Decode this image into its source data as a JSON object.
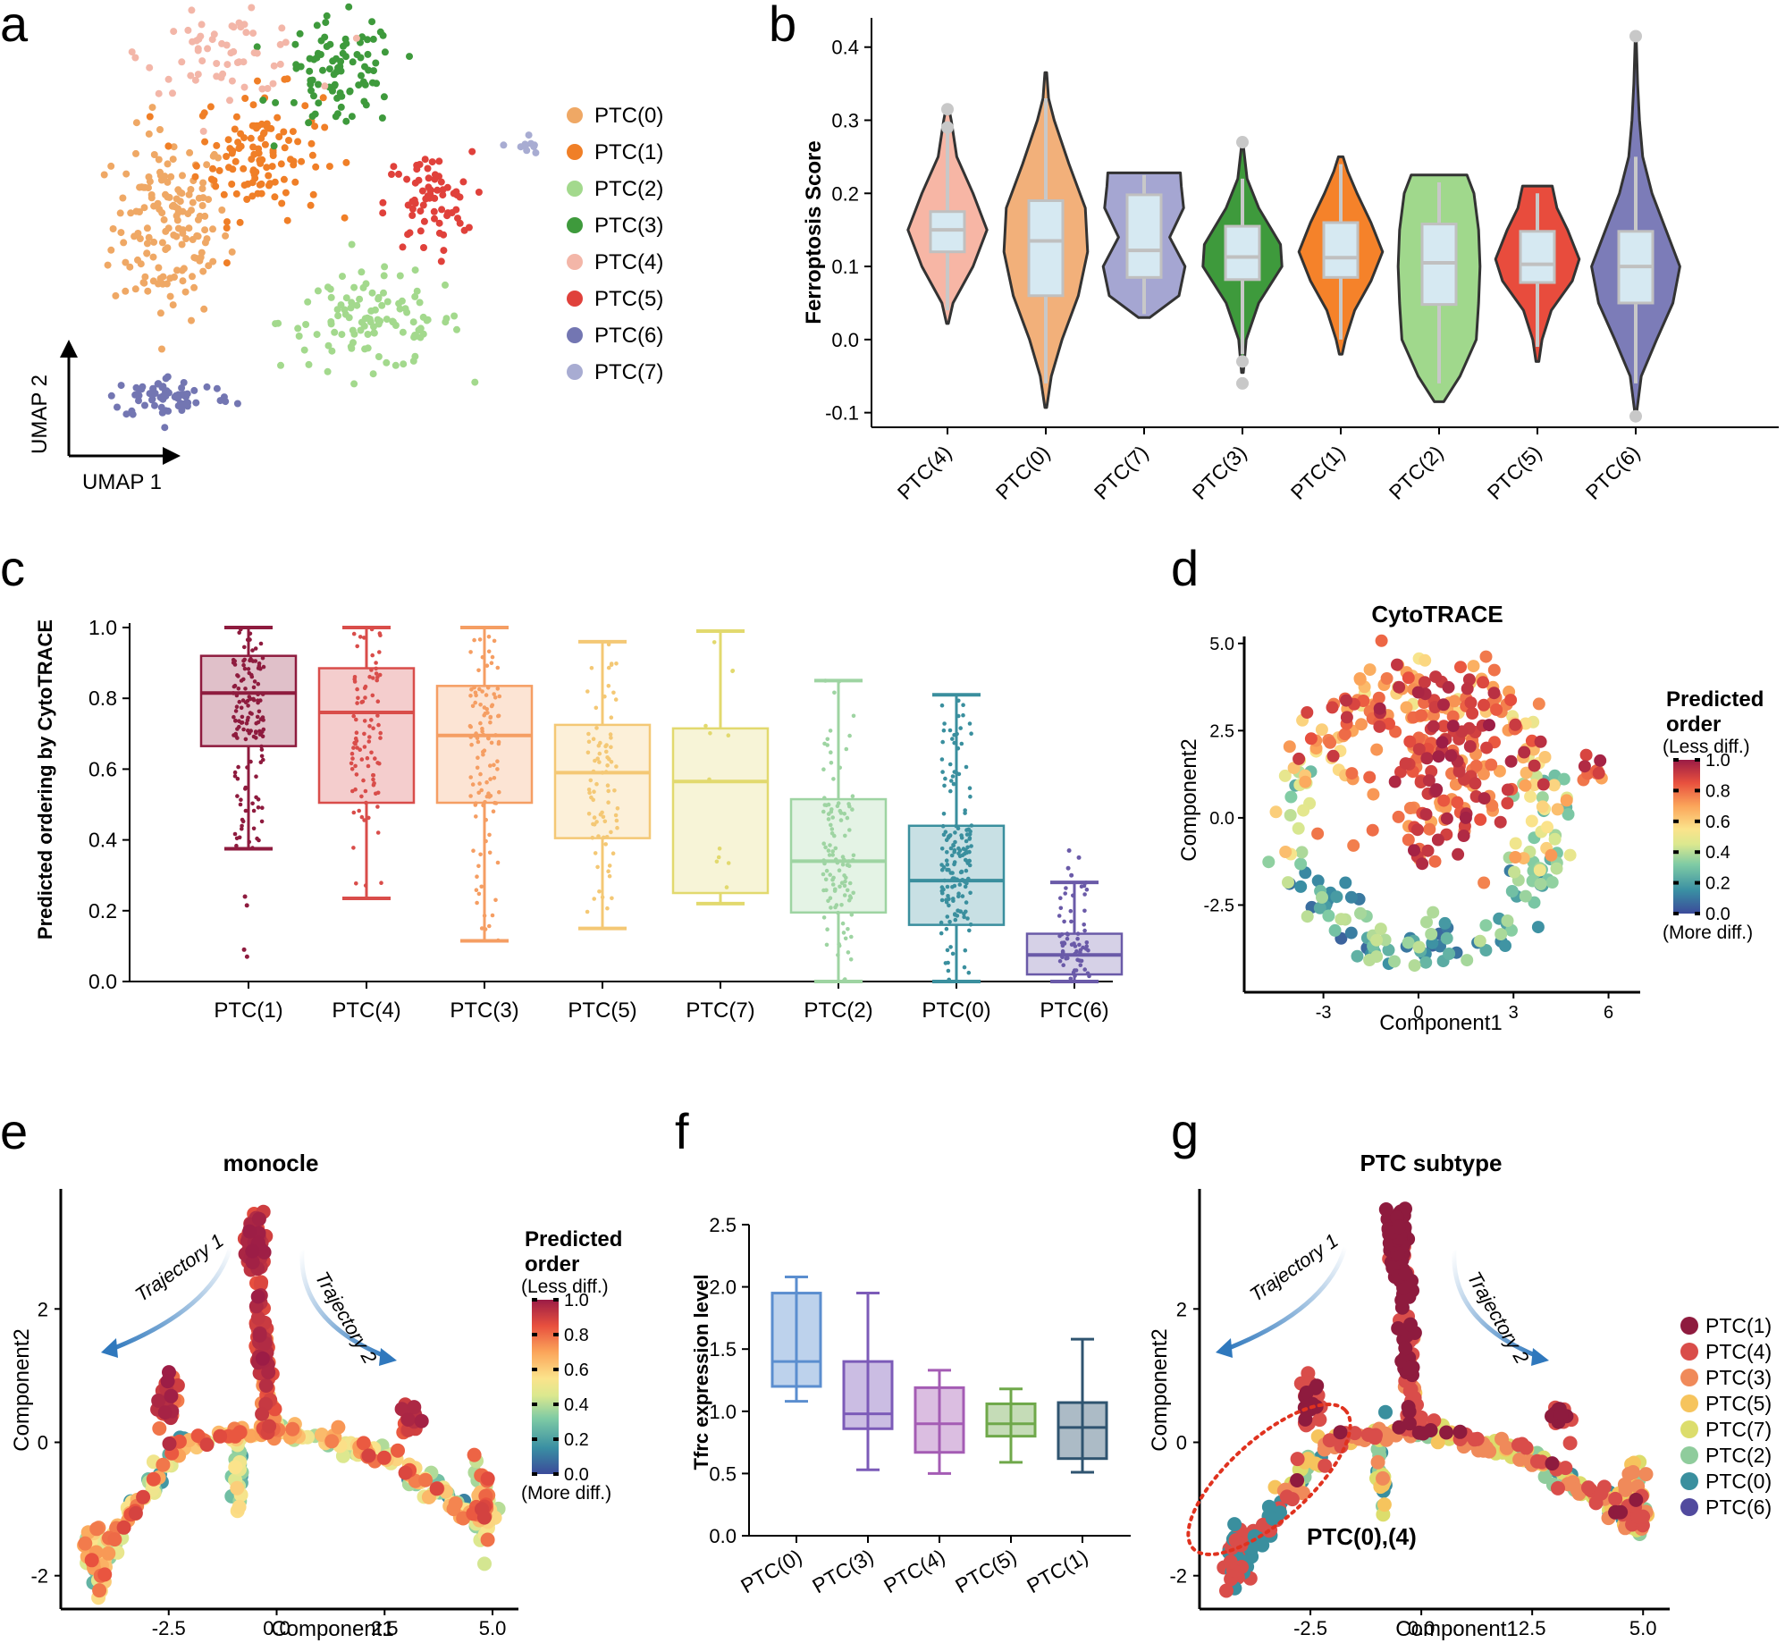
{
  "panel_labels": [
    "a",
    "b",
    "c",
    "d",
    "e",
    "f",
    "g"
  ],
  "chart_data": [
    {
      "panel": "a",
      "type": "scatter",
      "title": "",
      "xlabel": "UMAP 1",
      "ylabel": "UMAP 2",
      "legend": [
        {
          "name": "PTC(0)",
          "color": "#efa865"
        },
        {
          "name": "PTC(1)",
          "color": "#f07f27"
        },
        {
          "name": "PTC(2)",
          "color": "#a3d98d"
        },
        {
          "name": "PTC(3)",
          "color": "#3e9a3c"
        },
        {
          "name": "PTC(4)",
          "color": "#f3b6a8"
        },
        {
          "name": "PTC(5)",
          "color": "#e0413b"
        },
        {
          "name": "PTC(6)",
          "color": "#7376b2"
        },
        {
          "name": "PTC(7)",
          "color": "#a8acd2"
        }
      ],
      "clusters": [
        {
          "name": "PTC(0)",
          "cx": -3.2,
          "cy": 0.2,
          "sx": 1.2,
          "sy": 2.2,
          "n": 160
        },
        {
          "name": "PTC(1)",
          "cx": -1.0,
          "cy": 2.2,
          "sx": 1.3,
          "sy": 1.5,
          "n": 120
        },
        {
          "name": "PTC(2)",
          "cx": 1.8,
          "cy": -2.5,
          "sx": 1.9,
          "sy": 1.1,
          "n": 110
        },
        {
          "name": "PTC(3)",
          "cx": 1.0,
          "cy": 4.4,
          "sx": 1.2,
          "sy": 1.3,
          "n": 90
        },
        {
          "name": "PTC(4)",
          "cx": -1.8,
          "cy": 5.0,
          "sx": 1.7,
          "sy": 0.9,
          "n": 60
        },
        {
          "name": "PTC(5)",
          "cx": 3.2,
          "cy": 0.8,
          "sx": 0.9,
          "sy": 1.2,
          "n": 70
        },
        {
          "name": "PTC(6)",
          "cx": -3.2,
          "cy": -4.6,
          "sx": 1.3,
          "sy": 0.5,
          "n": 70
        },
        {
          "name": "PTC(7)",
          "cx": 5.6,
          "cy": 2.4,
          "sx": 0.3,
          "sy": 0.3,
          "n": 10
        }
      ]
    },
    {
      "panel": "b",
      "type": "violin",
      "xlabel": "",
      "ylabel": "Ferroptosis Score",
      "ylim": [
        -0.12,
        0.44
      ],
      "yticks": [
        "-0.1",
        "0.0",
        "0.1",
        "0.2",
        "0.3",
        "0.4"
      ],
      "categories": [
        "PTC(4)",
        "PTC(0)",
        "PTC(7)",
        "PTC(3)",
        "PTC(1)",
        "PTC(2)",
        "PTC(5)",
        "PTC(6)"
      ],
      "colors": [
        "#f7b6a5",
        "#f2b07a",
        "#a5a6d2",
        "#3e9a3c",
        "#f5822a",
        "#a0d88c",
        "#e84c3d",
        "#7c7cb8"
      ],
      "violins": [
        {
          "min": 0.022,
          "max": 0.32,
          "q1": 0.12,
          "median": 0.15,
          "q3": 0.175,
          "wlo": 0.04,
          "whi": 0.29,
          "outliers": [
            0.29,
            0.315
          ],
          "shape": [
            [
              0.022,
              0.02
            ],
            [
              0.05,
              0.12
            ],
            [
              0.1,
              0.55
            ],
            [
              0.15,
              0.85
            ],
            [
              0.2,
              0.55
            ],
            [
              0.25,
              0.2
            ],
            [
              0.3,
              0.08
            ],
            [
              0.32,
              0.02
            ]
          ]
        },
        {
          "min": -0.093,
          "max": 0.365,
          "q1": 0.06,
          "median": 0.135,
          "q3": 0.19,
          "wlo": -0.06,
          "whi": 0.33,
          "outliers": [],
          "shape": [
            [
              -0.093,
              0.02
            ],
            [
              -0.05,
              0.12
            ],
            [
              0.0,
              0.35
            ],
            [
              0.06,
              0.7
            ],
            [
              0.12,
              0.9
            ],
            [
              0.18,
              0.85
            ],
            [
              0.24,
              0.5
            ],
            [
              0.3,
              0.18
            ],
            [
              0.33,
              0.06
            ],
            [
              0.365,
              0.02
            ]
          ]
        },
        {
          "min": 0.03,
          "max": 0.228,
          "q1": 0.085,
          "median": 0.122,
          "q3": 0.198,
          "wlo": 0.035,
          "whi": 0.225,
          "outliers": [],
          "shape": [
            [
              0.03,
              0.12
            ],
            [
              0.06,
              0.75
            ],
            [
              0.1,
              0.88
            ],
            [
              0.14,
              0.55
            ],
            [
              0.18,
              0.85
            ],
            [
              0.21,
              0.8
            ],
            [
              0.228,
              0.78
            ]
          ]
        },
        {
          "min": -0.045,
          "max": 0.265,
          "q1": 0.082,
          "median": 0.113,
          "q3": 0.155,
          "wlo": -0.02,
          "whi": 0.22,
          "outliers": [
            0.27,
            -0.03,
            -0.06
          ],
          "shape": [
            [
              -0.045,
              0.02
            ],
            [
              0.0,
              0.08
            ],
            [
              0.05,
              0.35
            ],
            [
              0.1,
              0.85
            ],
            [
              0.13,
              0.82
            ],
            [
              0.18,
              0.35
            ],
            [
              0.22,
              0.1
            ],
            [
              0.265,
              0.02
            ]
          ]
        },
        {
          "min": -0.02,
          "max": 0.25,
          "q1": 0.085,
          "median": 0.112,
          "q3": 0.16,
          "wlo": 0.0,
          "whi": 0.24,
          "outliers": [],
          "shape": [
            [
              -0.02,
              0.03
            ],
            [
              0.0,
              0.1
            ],
            [
              0.04,
              0.3
            ],
            [
              0.08,
              0.65
            ],
            [
              0.12,
              0.9
            ],
            [
              0.16,
              0.65
            ],
            [
              0.2,
              0.35
            ],
            [
              0.23,
              0.15
            ],
            [
              0.25,
              0.05
            ]
          ]
        },
        {
          "min": -0.085,
          "max": 0.225,
          "q1": 0.048,
          "median": 0.105,
          "q3": 0.158,
          "wlo": -0.06,
          "whi": 0.215,
          "outliers": [],
          "shape": [
            [
              -0.085,
              0.1
            ],
            [
              -0.05,
              0.45
            ],
            [
              0.0,
              0.8
            ],
            [
              0.05,
              0.85
            ],
            [
              0.1,
              0.88
            ],
            [
              0.15,
              0.85
            ],
            [
              0.2,
              0.75
            ],
            [
              0.225,
              0.6
            ]
          ]
        },
        {
          "min": -0.03,
          "max": 0.21,
          "q1": 0.078,
          "median": 0.103,
          "q3": 0.148,
          "wlo": -0.01,
          "whi": 0.2,
          "outliers": [],
          "shape": [
            [
              -0.03,
              0.03
            ],
            [
              0.0,
              0.1
            ],
            [
              0.04,
              0.3
            ],
            [
              0.08,
              0.75
            ],
            [
              0.11,
              0.9
            ],
            [
              0.15,
              0.65
            ],
            [
              0.18,
              0.42
            ],
            [
              0.21,
              0.32
            ]
          ]
        },
        {
          "min": -0.1,
          "max": 0.415,
          "q1": 0.05,
          "median": 0.1,
          "q3": 0.148,
          "wlo": -0.06,
          "whi": 0.25,
          "outliers": [
            0.415,
            -0.105
          ],
          "shape": [
            [
              -0.1,
              0.02
            ],
            [
              -0.05,
              0.12
            ],
            [
              0.0,
              0.45
            ],
            [
              0.05,
              0.8
            ],
            [
              0.1,
              0.95
            ],
            [
              0.15,
              0.65
            ],
            [
              0.2,
              0.35
            ],
            [
              0.25,
              0.15
            ],
            [
              0.3,
              0.08
            ],
            [
              0.35,
              0.04
            ],
            [
              0.415,
              0.01
            ]
          ]
        }
      ]
    },
    {
      "panel": "c",
      "type": "box",
      "xlabel": "",
      "ylabel": "Predicted ordering by CytoTRACE",
      "ylim": [
        0,
        1.0
      ],
      "yticks": [
        "0.0",
        "0.2",
        "0.4",
        "0.6",
        "0.8",
        "1.0"
      ],
      "categories": [
        "PTC(1)",
        "PTC(4)",
        "PTC(3)",
        "PTC(5)",
        "PTC(7)",
        "PTC(2)",
        "PTC(0)",
        "PTC(6)"
      ],
      "colors": [
        "#8e1b3e",
        "#d94d4a",
        "#f59e63",
        "#f4c875",
        "#e2d96e",
        "#9ed4a2",
        "#3a8f9e",
        "#6a5aa8"
      ],
      "boxes": [
        {
          "q1": 0.665,
          "median": 0.815,
          "q3": 0.92,
          "wlo": 0.375,
          "whi": 1.0,
          "n": 140,
          "outliers": [
            0.24,
            0.215,
            0.09,
            0.07
          ]
        },
        {
          "q1": 0.505,
          "median": 0.76,
          "q3": 0.885,
          "wlo": 0.235,
          "whi": 1.0,
          "n": 90,
          "outliers": []
        },
        {
          "q1": 0.505,
          "median": 0.695,
          "q3": 0.835,
          "wlo": 0.115,
          "whi": 1.0,
          "n": 110,
          "outliers": []
        },
        {
          "q1": 0.405,
          "median": 0.59,
          "q3": 0.725,
          "wlo": 0.15,
          "whi": 0.96,
          "n": 80,
          "outliers": []
        },
        {
          "q1": 0.25,
          "median": 0.565,
          "q3": 0.715,
          "wlo": 0.22,
          "whi": 0.99,
          "n": 12,
          "outliers": []
        },
        {
          "q1": 0.195,
          "median": 0.34,
          "q3": 0.515,
          "wlo": 0.0,
          "whi": 0.85,
          "n": 110,
          "outliers": []
        },
        {
          "q1": 0.16,
          "median": 0.285,
          "q3": 0.44,
          "wlo": 0.0,
          "whi": 0.81,
          "n": 160,
          "outliers": []
        },
        {
          "q1": 0.02,
          "median": 0.075,
          "q3": 0.135,
          "wlo": 0.0,
          "whi": 0.28,
          "n": 60,
          "outliers": [
            0.3,
            0.32,
            0.35,
            0.37
          ]
        }
      ]
    },
    {
      "panel": "d",
      "type": "scatter",
      "title": "CytoTRACE",
      "xlabel": "Component1",
      "ylabel": "Component2",
      "xlim": [
        -5.5,
        7.0
      ],
      "ylim": [
        -5.0,
        5.2
      ],
      "xticks": [
        "-3",
        "0",
        "3",
        "6"
      ],
      "yticks": [
        "-2.5",
        "0.0",
        "2.5",
        "5.0"
      ],
      "colorbar": {
        "title": "Predicted order",
        "top_label": "(Less diff.)",
        "bottom_label": "(More diff.)",
        "ticks": [
          "0.0",
          "0.2",
          "0.4",
          "0.6",
          "0.8",
          "1.0"
        ]
      }
    },
    {
      "panel": "e",
      "type": "scatter",
      "title": "monocle",
      "xlabel": "Component1",
      "ylabel": "Component2",
      "xlim": [
        -5.0,
        5.6
      ],
      "ylim": [
        -2.5,
        3.8
      ],
      "xticks": [
        "-2.5",
        "0.0",
        "2.5",
        "5.0"
      ],
      "yticks": [
        "-2",
        "0",
        "2"
      ],
      "annotations": [
        "Trajectory 1",
        "Trajectory 2"
      ],
      "colorbar": {
        "title": "Predicted order",
        "top_label": "(Less diff.)",
        "bottom_label": "(More diff.)",
        "ticks": [
          "0.0",
          "0.2",
          "0.4",
          "0.6",
          "0.8",
          "1.0"
        ]
      }
    },
    {
      "panel": "f",
      "type": "box",
      "xlabel": "",
      "ylabel": "Tfrc  expression level",
      "ylim": [
        0,
        2.5
      ],
      "yticks": [
        "0.0",
        "0.5",
        "1.0",
        "1.5",
        "2.0",
        "2.5"
      ],
      "categories": [
        "PTC(0)",
        "PTC(3)",
        "PTC(4)",
        "PTC(5)",
        "PTC(1)"
      ],
      "colors": [
        "#5b8ecf",
        "#7c5bb8",
        "#a45cb4",
        "#6fa84a",
        "#2f5470"
      ],
      "boxes": [
        {
          "q1": 1.2,
          "median": 1.4,
          "q3": 1.95,
          "wlo": 1.08,
          "whi": 2.08
        },
        {
          "q1": 0.86,
          "median": 0.98,
          "q3": 1.4,
          "wlo": 0.53,
          "whi": 1.95
        },
        {
          "q1": 0.67,
          "median": 0.9,
          "q3": 1.19,
          "wlo": 0.5,
          "whi": 1.33
        },
        {
          "q1": 0.8,
          "median": 0.9,
          "q3": 1.06,
          "wlo": 0.59,
          "whi": 1.18
        },
        {
          "q1": 0.62,
          "median": 0.87,
          "q3": 1.07,
          "wlo": 0.51,
          "whi": 1.58
        }
      ]
    },
    {
      "panel": "g",
      "type": "scatter",
      "title": "PTC subtype",
      "xlabel": "Component1",
      "ylabel": "Component2",
      "xlim": [
        -5.0,
        5.6
      ],
      "ylim": [
        -2.5,
        3.8
      ],
      "xticks": [
        "-2.5",
        "0.0",
        "2.5",
        "5.0"
      ],
      "yticks": [
        "-2",
        "0",
        "2"
      ],
      "annotations": [
        "Trajectory 1",
        "Trajectory 2",
        "PTC(0),(4)"
      ],
      "legend": [
        {
          "name": "PTC(1)",
          "color": "#8e1b3e"
        },
        {
          "name": "PTC(4)",
          "color": "#d94d4a"
        },
        {
          "name": "PTC(3)",
          "color": "#f08a5a"
        },
        {
          "name": "PTC(5)",
          "color": "#f6c45d"
        },
        {
          "name": "PTC(7)",
          "color": "#dcdd6c"
        },
        {
          "name": "PTC(2)",
          "color": "#8fcc9c"
        },
        {
          "name": "PTC(0)",
          "color": "#3a8f9e"
        },
        {
          "name": "PTC(6)",
          "color": "#514a9e"
        }
      ]
    }
  ]
}
